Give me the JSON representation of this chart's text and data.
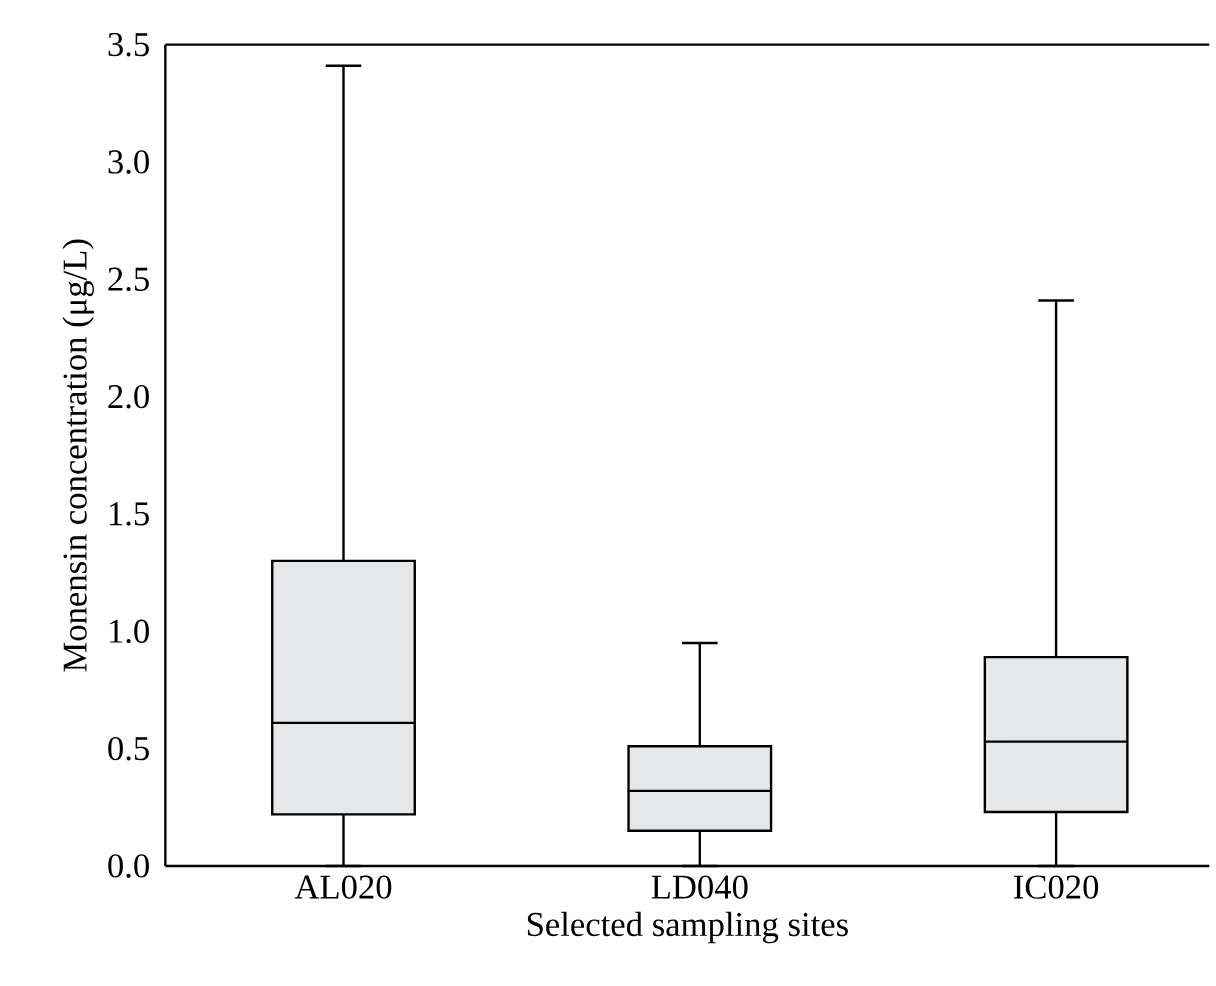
{
  "chart_data": {
    "type": "box",
    "xlabel": "Selected sampling sites",
    "ylabel": "Monensin concentration (μg/L)",
    "categories": [
      "AL020",
      "LD040",
      "IC020"
    ],
    "color": "#e6e7e8",
    "ylim": [
      0,
      3.5
    ],
    "yticks": [
      {
        "value": 0,
        "label": "0.0"
      },
      {
        "value": 0.5,
        "label": "0.5"
      },
      {
        "value": 1,
        "label": "1.0"
      },
      {
        "value": 1.5,
        "label": "1.5"
      },
      {
        "value": 2,
        "label": "2.0"
      },
      {
        "value": 2.5,
        "label": "2.5"
      },
      {
        "value": 3,
        "label": "3.0"
      },
      {
        "value": 3.5,
        "label": "3.5"
      }
    ],
    "boxes": [
      {
        "low": 0,
        "q1": 0.22,
        "median": 0.61,
        "q3": 1.3,
        "high": 3.41
      },
      {
        "low": 0,
        "q1": 0.15,
        "median": 0.32,
        "q3": 0.51,
        "high": 0.95
      },
      {
        "low": 0,
        "q1": 0.23,
        "median": 0.53,
        "q3": 0.89,
        "high": 2.41
      }
    ],
    "grid": false
  }
}
